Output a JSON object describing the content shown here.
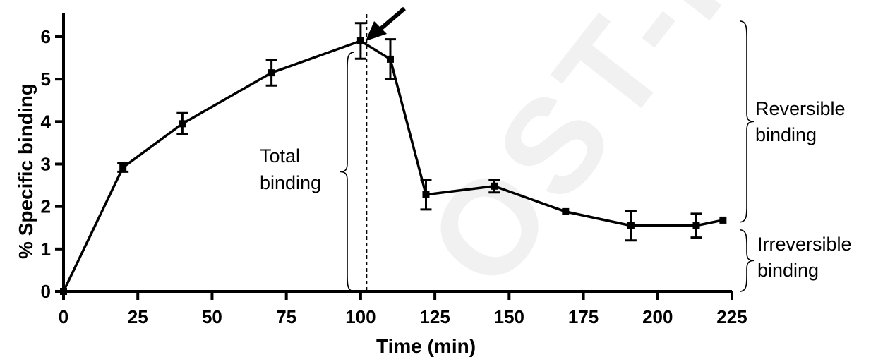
{
  "chart_data": {
    "type": "line",
    "xlabel": "Time (min)",
    "ylabel": "% Specific binding",
    "xlim": [
      0,
      225
    ],
    "ylim": [
      0,
      6
    ],
    "xticks": [
      0,
      25,
      50,
      75,
      100,
      125,
      150,
      175,
      200,
      225
    ],
    "yticks": [
      0,
      1,
      2,
      3,
      4,
      5,
      6
    ],
    "grid": false,
    "series": [
      {
        "x": [
          0,
          20,
          40,
          70,
          100,
          110,
          122,
          145,
          169,
          191,
          213,
          222
        ],
        "y": [
          0,
          2.92,
          3.95,
          5.15,
          5.9,
          5.47,
          2.28,
          2.48,
          1.88,
          1.55,
          1.55,
          1.68
        ],
        "err": [
          0,
          0.1,
          0.25,
          0.3,
          0.42,
          0.47,
          0.35,
          0.15,
          0.03,
          0.35,
          0.28,
          0.03
        ]
      }
    ],
    "marker_line_x": 102,
    "annotations": [
      {
        "id": "total",
        "line1": "Total",
        "line2": "binding",
        "y_range": [
          0,
          6.3
        ]
      },
      {
        "id": "reversible",
        "line1": "Reversible",
        "line2": "binding",
        "y_range": [
          1.8,
          6.3
        ]
      },
      {
        "id": "irreversible",
        "line1": "Irreversible",
        "line2": "binding",
        "y_range": [
          0,
          1.55
        ]
      }
    ]
  }
}
